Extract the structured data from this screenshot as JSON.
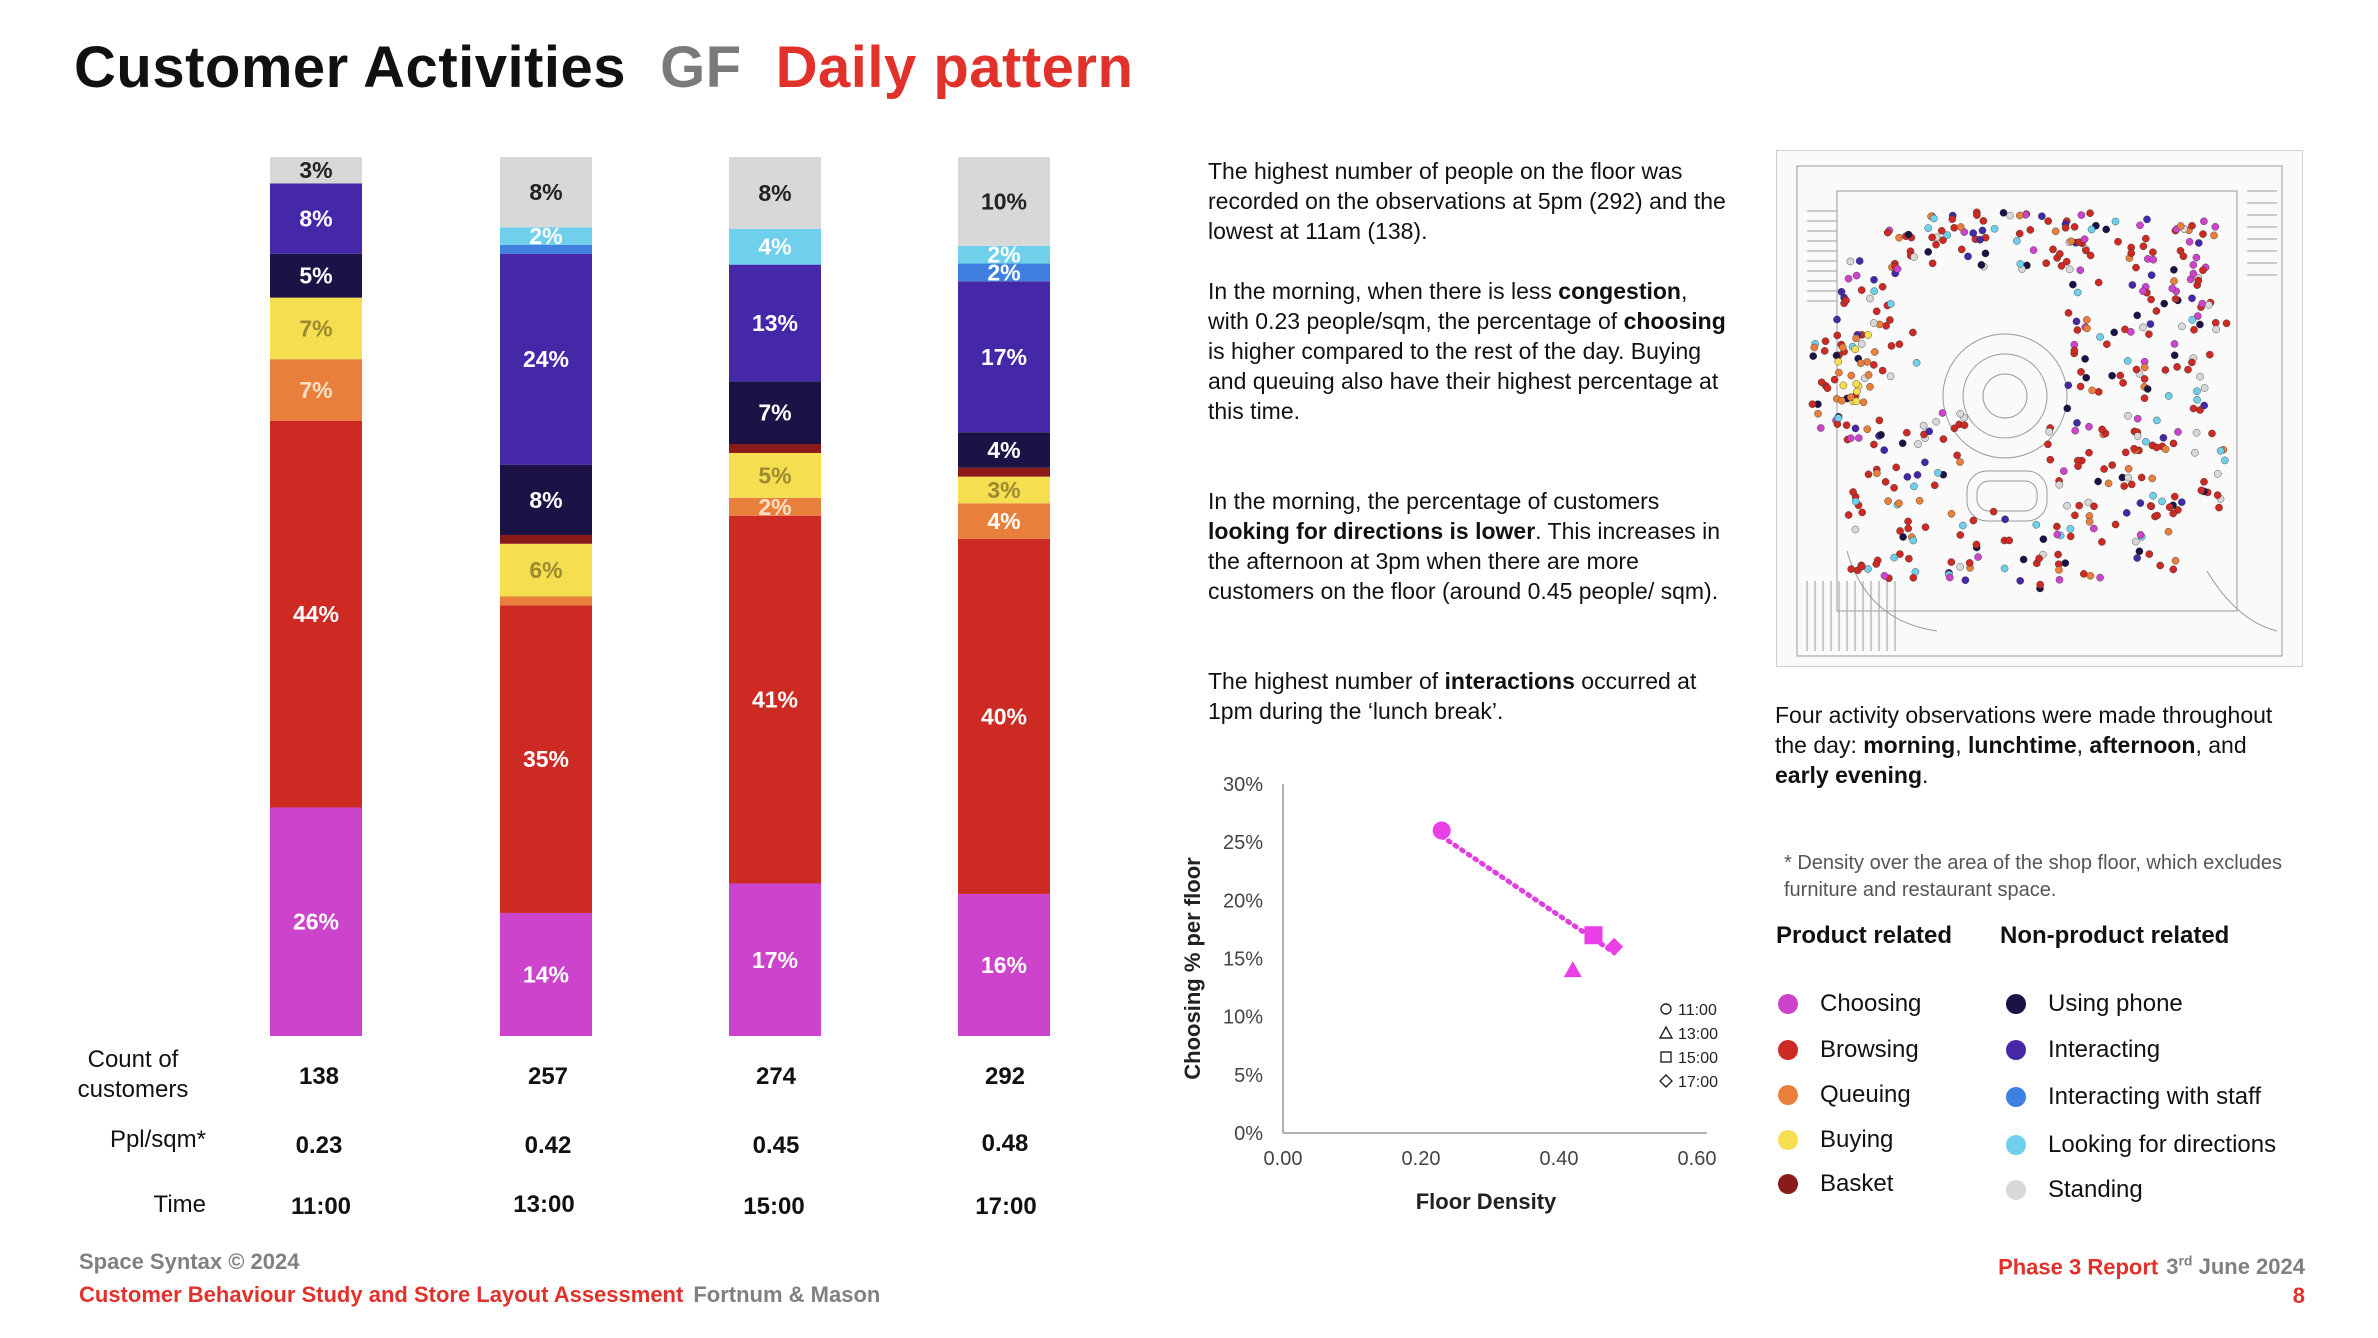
{
  "title": {
    "part1": "Customer Activities",
    "part2": "GF",
    "part3": "Daily pattern"
  },
  "colors": {
    "Choosing": "#cc44cc",
    "Browsing": "#cc2a22",
    "Queuing": "#e8803c",
    "Buying": "#f5de50",
    "Basket": "#8b1a1a",
    "Using phone": "#1c1245",
    "Interacting": "#4428a8",
    "Interacting with staff": "#3f7fe0",
    "Looking for directions": "#6fd0ec",
    "Standing": "#d8d8d8"
  },
  "chart_data": [
    {
      "type": "bar",
      "stacked": true,
      "categories": [
        "11:00",
        "13:00",
        "15:00",
        "17:00"
      ],
      "series": [
        {
          "name": "Choosing",
          "values": [
            26,
            14,
            17,
            16
          ],
          "labels": [
            "26%",
            "14%",
            "17%",
            "16%"
          ]
        },
        {
          "name": "Browsing",
          "values": [
            44,
            35,
            41,
            40
          ],
          "labels": [
            "44%",
            "35%",
            "41%",
            "40%"
          ]
        },
        {
          "name": "Queuing",
          "values": [
            7,
            1,
            2,
            4
          ],
          "labels": [
            "7%",
            "",
            "2%",
            "4%"
          ]
        },
        {
          "name": "Buying",
          "values": [
            7,
            6,
            5,
            3
          ],
          "labels": [
            "7%",
            "6%",
            "5%",
            "3%"
          ]
        },
        {
          "name": "Basket",
          "values": [
            0,
            1,
            1,
            1
          ],
          "labels": [
            "",
            "",
            "",
            ""
          ]
        },
        {
          "name": "Using phone",
          "values": [
            5,
            8,
            7,
            4
          ],
          "labels": [
            "5%",
            "8%",
            "7%",
            "4%"
          ]
        },
        {
          "name": "Interacting",
          "values": [
            8,
            24,
            13,
            17
          ],
          "labels": [
            "8%",
            "24%",
            "13%",
            "17%"
          ]
        },
        {
          "name": "Interacting with staff",
          "values": [
            0,
            1,
            0,
            2
          ],
          "labels": [
            "",
            "",
            "",
            "2%"
          ]
        },
        {
          "name": "Looking for directions",
          "values": [
            0,
            2,
            4,
            2
          ],
          "labels": [
            "",
            "2%",
            "4%",
            "2%"
          ]
        },
        {
          "name": "Standing",
          "values": [
            3,
            8,
            8,
            10
          ],
          "labels": [
            "3%",
            "8%",
            "8%",
            "10%"
          ]
        }
      ],
      "rows": {
        "count_label": "Count of customers",
        "count": [
          "138",
          "257",
          "274",
          "292"
        ],
        "density_label": "Ppl/sqm*",
        "density": [
          "0.23",
          "0.42",
          "0.45",
          "0.48"
        ],
        "time_label": "Time",
        "time": [
          "11:00",
          "13:00",
          "15:00",
          "17:00"
        ]
      }
    },
    {
      "type": "scatter",
      "xlabel": "Floor Density",
      "ylabel": "Choosing % per floor",
      "xlim": [
        0,
        0.6
      ],
      "ylim": [
        0,
        30
      ],
      "xticks": [
        "0.00",
        "0.20",
        "0.40",
        "0.60"
      ],
      "yticks": [
        "0%",
        "5%",
        "10%",
        "15%",
        "20%",
        "25%",
        "30%"
      ],
      "points": [
        {
          "label": "11:00",
          "x": 0.23,
          "y": 26,
          "marker": "circle"
        },
        {
          "label": "13:00",
          "x": 0.42,
          "y": 14,
          "marker": "triangle"
        },
        {
          "label": "15:00",
          "x": 0.45,
          "y": 17,
          "marker": "square"
        },
        {
          "label": "17:00",
          "x": 0.48,
          "y": 16,
          "marker": "diamond"
        }
      ],
      "trendline": {
        "from": [
          0.23,
          25.5
        ],
        "to": [
          0.48,
          15.5
        ]
      },
      "legend": [
        "11:00",
        "13:00",
        "15:00",
        "17:00"
      ]
    }
  ],
  "text": {
    "p1": "The highest number of people on the floor was recorded on the observations at 5pm (292) and the lowest at 11am (138).",
    "p2a": "In the morning, when there is less ",
    "p2b": "congestion",
    "p2c": ", with 0.23 people/sqm, the percentage of ",
    "p2d": "choosing",
    "p2e": " is higher compared to the rest of the day. Buying and queuing also have their highest percentage at this time.",
    "p3a": "In the morning, the percentage of customers ",
    "p3b": "looking for directions is lower",
    "p3c": ". This increases in the afternoon at 3pm when there are more customers on the floor (around 0.45 people/ sqm).",
    "p4a": "The highest number of ",
    "p4b": "interactions",
    "p4c": " occurred at 1pm during the ‘lunch break’.",
    "cap_a": "Four activity observations were made throughout the day: ",
    "cap_b": "morning",
    "cap_c": ", ",
    "cap_d": "lunchtime",
    "cap_e": ", ",
    "cap_f": "afternoon",
    "cap_g": ", and ",
    "cap_h": "early evening",
    "cap_i": ".",
    "note": "* Density over the area of the shop floor, which excludes furniture and  restaurant space."
  },
  "legend": {
    "product_title": "Product related",
    "nonproduct_title": "Non-product related",
    "product": [
      "Choosing",
      "Browsing",
      "Queuing",
      "Buying",
      "Basket"
    ],
    "nonproduct": [
      "Using phone",
      "Interacting",
      "Interacting with staff",
      "Looking for directions",
      "Standing"
    ]
  },
  "footer": {
    "copyright": "Space Syntax © 2024",
    "study": "Customer Behaviour Study and Store Layout Assessment",
    "client": "Fortnum & Mason",
    "report": "Phase 3 Report",
    "date_day": "3",
    "date_sup": "rd",
    "date_rest": " June 2024",
    "page": "8"
  }
}
